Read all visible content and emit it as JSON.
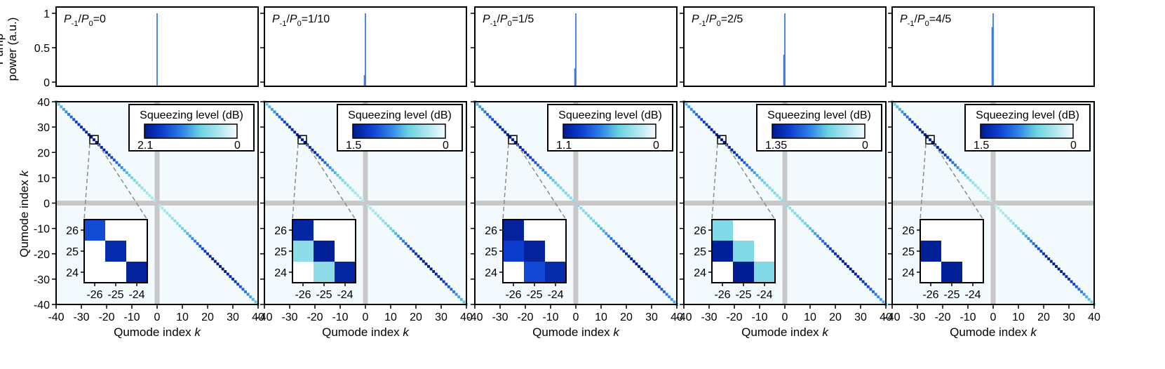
{
  "figure": {
    "top_ylabel_lines": [
      "Pump",
      "power (a.u.)"
    ],
    "bottom_ylabel": [
      "Qumode index ",
      "k"
    ],
    "xlabel": [
      "Qumode index ",
      "k"
    ],
    "top_yticks": [
      "0",
      "0.5",
      "1"
    ],
    "matrix_ticks": [
      "-40",
      "-30",
      "-20",
      "-10",
      "0",
      "10",
      "20",
      "30",
      "40"
    ],
    "colorbar_title": "Squeezing level (dB)",
    "colorbar_min_label": "0",
    "colors": {
      "axis": "#000000",
      "line": "#3b7be0",
      "background": "#f2fafd",
      "gap": "#c8c8c8",
      "dash": "#8a8a8a",
      "colormap": [
        "#001a8c",
        "#0d3fd1",
        "#2f7fe6",
        "#6bd2e0",
        "#aee6ee",
        "#f4fbff"
      ]
    }
  },
  "chart_data": [
    {
      "type": "heatmap",
      "title_parts": [
        "P",
        "-1",
        "/",
        "P",
        "0",
        "=0"
      ],
      "pump_spectrum": {
        "x": [
          0
        ],
        "y": [
          1.0
        ],
        "xlim": [
          -40,
          40
        ],
        "ylim": [
          0,
          1
        ]
      },
      "colorbar": {
        "max": 2.1,
        "max_label": "2.1",
        "min": 0
      },
      "diagonal": {
        "k_range": [
          -40,
          40
        ],
        "min_level": 0.35,
        "max_level": 2.1
      },
      "inset": {
        "labels": [
          "-26",
          "-25",
          "-24"
        ],
        "ylabels": [
          "26",
          "25",
          "24"
        ],
        "cells": [
          [
            1.6,
            0,
            0
          ],
          [
            0,
            1.9,
            0
          ],
          [
            0,
            0,
            2.0
          ]
        ]
      }
    },
    {
      "type": "heatmap",
      "title_parts": [
        "P",
        "-1",
        "/",
        "P",
        "0",
        "=1/10"
      ],
      "pump_spectrum": {
        "x": [
          -1,
          0
        ],
        "y": [
          0.1,
          1.0
        ],
        "xlim": [
          -40,
          40
        ],
        "ylim": [
          0,
          1
        ]
      },
      "colorbar": {
        "max": 1.5,
        "max_label": "1.5",
        "min": 0
      },
      "diagonal": {
        "k_range": [
          -40,
          40
        ],
        "min_level": 0.25,
        "max_level": 1.5
      },
      "inset": {
        "labels": [
          "-26",
          "-25",
          "-24"
        ],
        "ylabels": [
          "26",
          "25",
          "24"
        ],
        "cells": [
          [
            1.4,
            0,
            0
          ],
          [
            0.45,
            1.45,
            0
          ],
          [
            0,
            0.45,
            1.4
          ]
        ]
      }
    },
    {
      "type": "heatmap",
      "title_parts": [
        "P",
        "-1",
        "/",
        "P",
        "0",
        "=1/5"
      ],
      "pump_spectrum": {
        "x": [
          -1,
          0
        ],
        "y": [
          0.2,
          1.0
        ],
        "xlim": [
          -40,
          40
        ],
        "ylim": [
          0,
          1
        ]
      },
      "colorbar": {
        "max": 1.1,
        "max_label": "1.1",
        "min": 0
      },
      "diagonal": {
        "k_range": [
          -40,
          40
        ],
        "min_level": 0.3,
        "max_level": 1.1
      },
      "inset": {
        "labels": [
          "-26",
          "-25",
          "-24"
        ],
        "ylabels": [
          "26",
          "25",
          "24"
        ],
        "cells": [
          [
            1.05,
            0,
            0
          ],
          [
            0.9,
            1.05,
            0
          ],
          [
            0,
            0.85,
            1.0
          ]
        ]
      }
    },
    {
      "type": "heatmap",
      "title_parts": [
        "P",
        "-1",
        "/",
        "P",
        "0",
        "=2/5"
      ],
      "pump_spectrum": {
        "x": [
          -1,
          0
        ],
        "y": [
          0.4,
          1.0
        ],
        "xlim": [
          -40,
          40
        ],
        "ylim": [
          0,
          1
        ]
      },
      "colorbar": {
        "max": 1.35,
        "max_label": "1.35",
        "min": 0
      },
      "diagonal": {
        "k_range": [
          -40,
          40
        ],
        "min_level": 0.35,
        "max_level": 1.35
      },
      "inset": {
        "labels": [
          "-26",
          "-25",
          "-24"
        ],
        "ylabels": [
          "26",
          "25",
          "24"
        ],
        "cells": [
          [
            0.45,
            0,
            0
          ],
          [
            1.3,
            0.45,
            0
          ],
          [
            0,
            1.33,
            0.45
          ]
        ]
      }
    },
    {
      "type": "heatmap",
      "title_parts": [
        "P",
        "-1",
        "/",
        "P",
        "0",
        "=4/5"
      ],
      "pump_spectrum": {
        "x": [
          -1,
          0
        ],
        "y": [
          0.8,
          1.0
        ],
        "xlim": [
          -40,
          40
        ],
        "ylim": [
          0,
          1
        ]
      },
      "colorbar": {
        "max": 1.5,
        "max_label": "1.5",
        "min": 0
      },
      "diagonal": {
        "k_range": [
          -40,
          40
        ],
        "min_level": 0.2,
        "max_level": 1.5
      },
      "inset": {
        "labels": [
          "-26",
          "-25",
          "-24"
        ],
        "ylabels": [
          "26",
          "25",
          "24"
        ],
        "cells": [
          [
            0,
            0,
            0
          ],
          [
            1.45,
            0,
            0
          ],
          [
            0,
            1.45,
            0
          ]
        ]
      }
    }
  ]
}
